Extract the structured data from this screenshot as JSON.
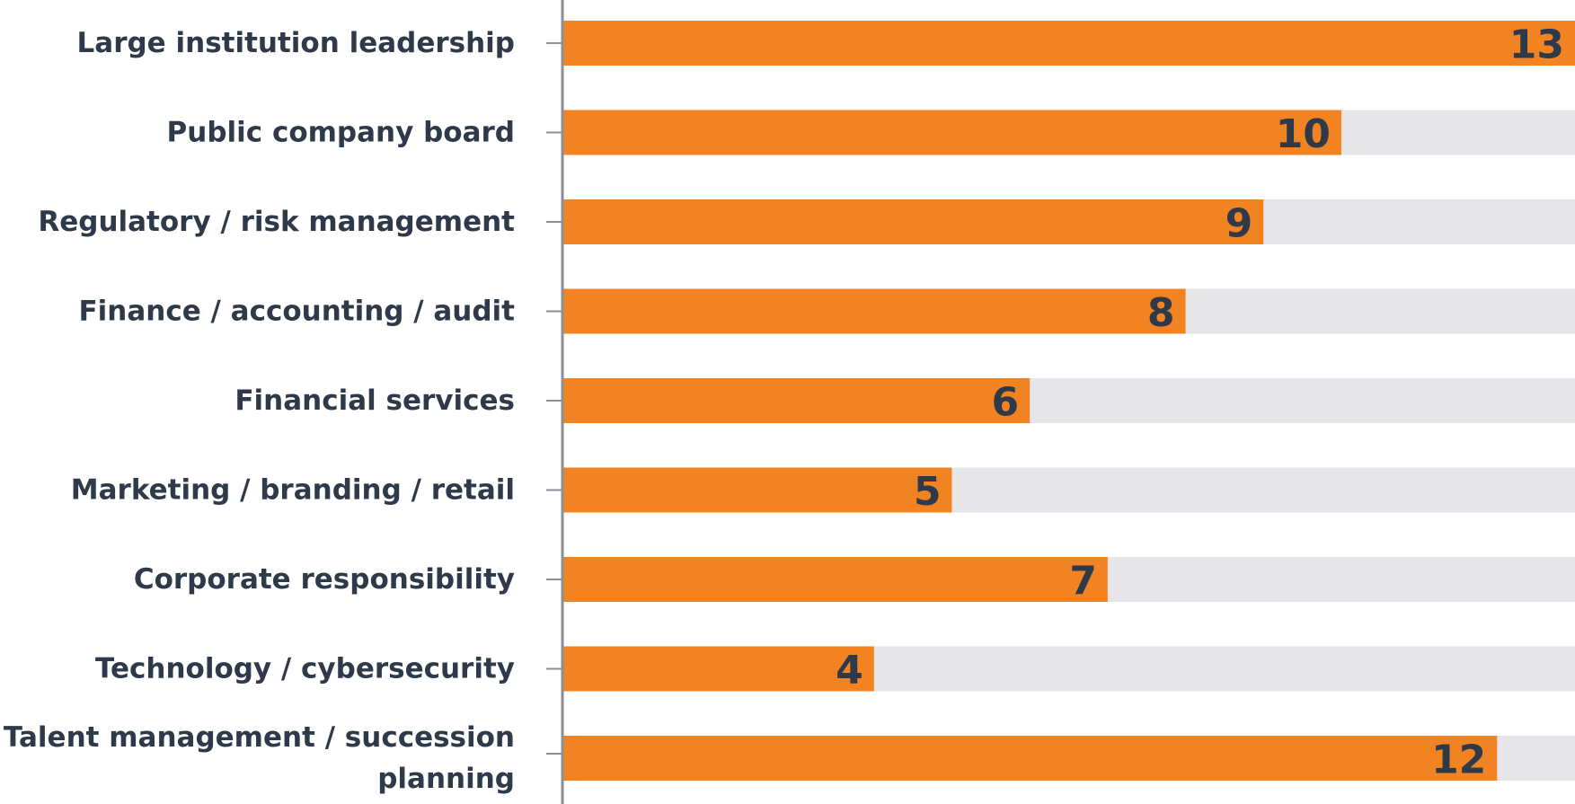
{
  "chart_data": {
    "type": "bar",
    "orientation": "horizontal",
    "categories": [
      [
        "Large institution leadership"
      ],
      [
        "Public company board"
      ],
      [
        "Regulatory / risk management"
      ],
      [
        "Finance / accounting / audit"
      ],
      [
        "Financial services"
      ],
      [
        "Marketing / branding / retail"
      ],
      [
        "Corporate responsibility"
      ],
      [
        "Technology / cybersecurity"
      ],
      [
        "Talent management / succession",
        "planning"
      ]
    ],
    "values": [
      13,
      10,
      9,
      8,
      6,
      5,
      7,
      4,
      12
    ],
    "value_labels": [
      "13",
      "10",
      "9",
      "8",
      "6",
      "5",
      "7",
      "4",
      "12"
    ],
    "xlim": [
      0,
      13
    ],
    "title": "",
    "xlabel": "",
    "ylabel": "",
    "grid": false,
    "colors": {
      "bar": "#f28322",
      "track": "#e6e6e8",
      "axis": "#8a8f96",
      "text": "#2e3a49"
    }
  }
}
